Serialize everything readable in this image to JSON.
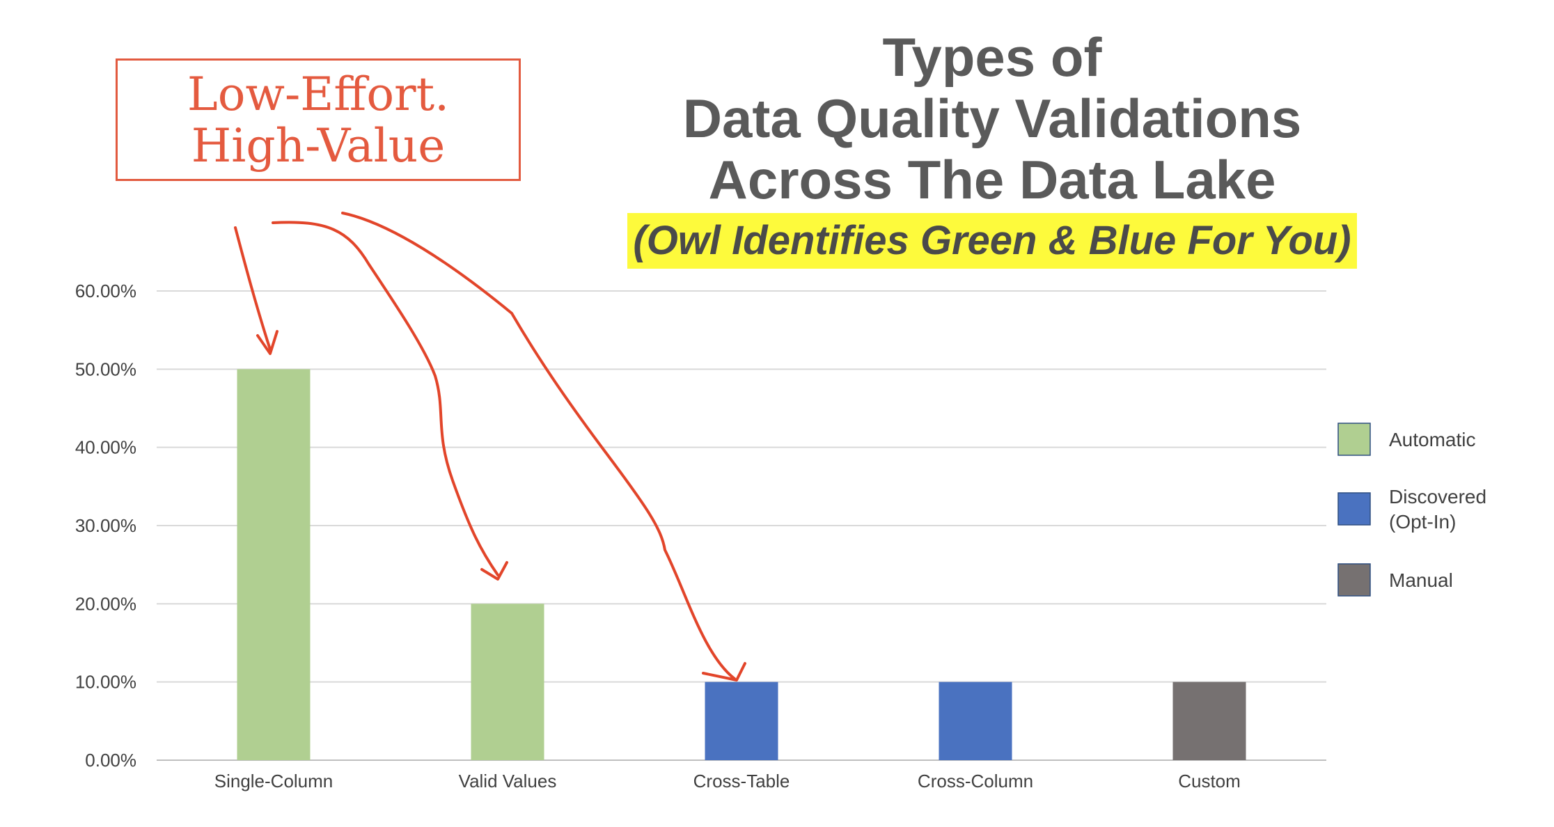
{
  "title": {
    "line1": "Types of",
    "line2": "Data Quality Validations",
    "line3": "Across The Data Lake",
    "subtitle": "(Owl Identifies Green & Blue For You)"
  },
  "callout": {
    "line1": "Low-Effort.",
    "line2": "High-Value"
  },
  "colors": {
    "automatic": "#b0cf91",
    "discovered": "#4a72c0",
    "manual": "#767171",
    "annotation": "#e2452a",
    "highlight": "#fdfa3c"
  },
  "chart_data": {
    "type": "bar",
    "categories": [
      "Single-Column",
      "Valid Values",
      "Cross-Table",
      "Cross-Column",
      "Custom"
    ],
    "values": [
      0.5,
      0.2,
      0.1,
      0.1,
      0.1
    ],
    "bar_groups": [
      "Automatic",
      "Automatic",
      "Discovered\n(Opt-In)",
      "Discovered\n(Opt-In)",
      "Manual"
    ],
    "ylim": [
      0,
      0.6
    ],
    "yticks": [
      0,
      0.1,
      0.2,
      0.3,
      0.4,
      0.5,
      0.6
    ],
    "ytick_labels": [
      "0.00%",
      "10.00%",
      "20.00%",
      "30.00%",
      "40.00%",
      "50.00%",
      "60.00%"
    ],
    "grid": true,
    "legend": {
      "placement": "right",
      "entries": [
        {
          "label": "Automatic",
          "color": "#b0cf91"
        },
        {
          "label": "Discovered\n(Opt-In)",
          "color": "#4a72c0"
        },
        {
          "label": "Manual",
          "color": "#767171"
        }
      ]
    }
  }
}
